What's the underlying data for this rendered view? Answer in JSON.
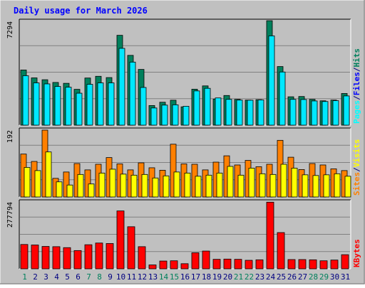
{
  "colors": {
    "frame_bg": "#c0c0c0",
    "plot_bg": "#c0c0c0",
    "grid": "#808080",
    "title": "#0000ff",
    "hits": "#00805c",
    "files": "#00e8ff",
    "pages": "#00ffff",
    "visits": "#ff8000",
    "sites": "#ffff00",
    "kbytes": "#ff0000",
    "weekend_day": "#00805c",
    "weekday": "#000080"
  },
  "chart_data": {
    "type": "bar",
    "title": "Daily usage for March 2026",
    "categories": [
      "1",
      "2",
      "3",
      "4",
      "5",
      "6",
      "7",
      "8",
      "9",
      "10",
      "11",
      "12",
      "13",
      "14",
      "15",
      "16",
      "17",
      "18",
      "19",
      "20",
      "21",
      "22",
      "23",
      "24",
      "25",
      "26",
      "27",
      "28",
      "29",
      "30",
      "31"
    ],
    "weekend_days": [
      "1",
      "7",
      "8",
      "14",
      "15",
      "21",
      "22",
      "28",
      "29"
    ],
    "panels": [
      {
        "id": "hits_files_pages",
        "ylim": [
          0,
          7294
        ],
        "max_label": "7294",
        "axis_labels": [
          {
            "text": "Pages",
            "color": "#00ffff"
          },
          {
            "text": "/",
            "color": "#000080"
          },
          {
            "text": "Files",
            "color": "#0000ff"
          },
          {
            "text": "/",
            "color": "#000080"
          },
          {
            "text": "Hits",
            "color": "#00805c"
          }
        ],
        "series": [
          {
            "name": "Hits",
            "color": "#00805c",
            "values": [
              3850,
              3300,
              3170,
              2980,
              2920,
              2500,
              3290,
              3410,
              3320,
              6270,
              4870,
              3890,
              1370,
              1600,
              1740,
              1280,
              2510,
              2740,
              1820,
              2070,
              1800,
              1750,
              1780,
              7290,
              4090,
              1980,
              2000,
              1800,
              1700,
              1750,
              2210
            ]
          },
          {
            "name": "Files",
            "color": "#00e8ff",
            "values": [
              3450,
              2950,
              2880,
              2700,
              2650,
              2230,
              2850,
              2950,
              2950,
              5360,
              4400,
              2630,
              1200,
              1400,
              1420,
              1320,
              2390,
              2570,
              1900,
              1800,
              1750,
              1740,
              1760,
              6230,
              3710,
              1800,
              1790,
              1690,
              1650,
              1710,
              2040
            ]
          },
          {
            "name": "Pages",
            "color": "#00ffff",
            "values": [
              0,
              0,
              0,
              0,
              0,
              0,
              0,
              0,
              0,
              0,
              0,
              0,
              0,
              0,
              0,
              0,
              0,
              0,
              0,
              0,
              0,
              0,
              0,
              0,
              0,
              0,
              0,
              0,
              0,
              0,
              0
            ]
          }
        ]
      },
      {
        "id": "visits_sites",
        "ylim": [
          0,
          192
        ],
        "max_label": "192",
        "axis_labels": [
          {
            "text": "Sites",
            "color": "#ff8000"
          },
          {
            "text": "/",
            "color": "#000080"
          },
          {
            "text": "Visits",
            "color": "#ffff00"
          }
        ],
        "series": [
          {
            "name": "Visits",
            "color": "#ff8000",
            "values": [
              122,
              101,
              190,
              53,
              71,
              95,
              77,
              93,
              112,
              94,
              77,
              97,
              83,
              76,
              150,
              94,
              93,
              77,
              99,
              117,
              91,
              104,
              86,
              93,
              161,
              113,
              78,
              95,
              91,
              80,
              75
            ]
          },
          {
            "name": "Sites",
            "color": "#ffff00",
            "values": [
              84,
              75,
              128,
              43,
              34,
              64,
              37,
              68,
              79,
              65,
              62,
              64,
              54,
              60,
              71,
              68,
              59,
              62,
              68,
              87,
              62,
              82,
              66,
              64,
              93,
              82,
              63,
              61,
              63,
              66,
              59
            ]
          }
        ]
      },
      {
        "id": "kbytes",
        "ylim": [
          0,
          277794
        ],
        "max_label": "277794",
        "axis_labels": [
          {
            "text": "KBytes",
            "color": "#ff0000"
          }
        ],
        "series": [
          {
            "name": "KBytes",
            "color": "#ff0000",
            "values": [
              100000,
              98000,
              92000,
              91000,
              87000,
              75000,
              99000,
              106000,
              104000,
              238000,
              173000,
              91000,
              16000,
              32000,
              33000,
              21000,
              66000,
              73000,
              39000,
              40000,
              39000,
              35000,
              37000,
              274000,
              149000,
              38000,
              38000,
              37000,
              33000,
              36000,
              58000
            ]
          }
        ]
      }
    ]
  }
}
